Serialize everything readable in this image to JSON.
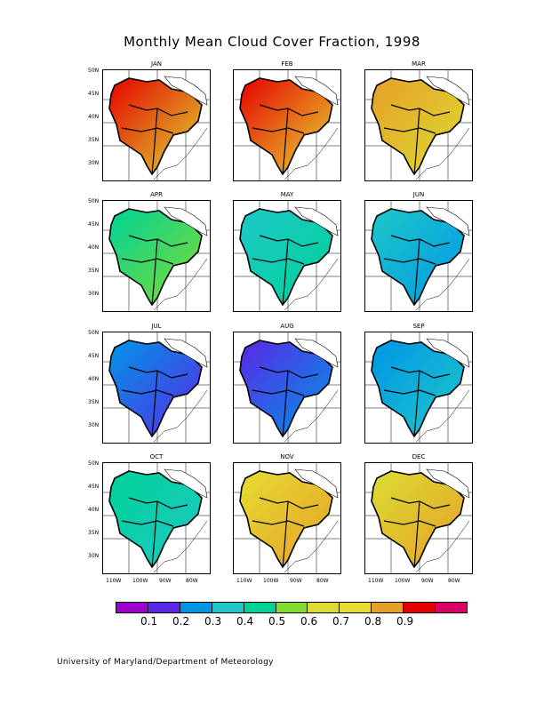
{
  "title": "Monthly Mean Cloud Cover Fraction, 1998",
  "months": [
    "JAN",
    "FEB",
    "MAR",
    "APR",
    "MAY",
    "JUN",
    "JUL",
    "AUG",
    "SEP",
    "OCT",
    "NOV",
    "DEC"
  ],
  "lat_labels": [
    "50N",
    "45N",
    "40N",
    "35N",
    "30N"
  ],
  "lon_labels": [
    "110W",
    "100W",
    "90W",
    "80W"
  ],
  "colorbar": {
    "colors": [
      "#9b00cc",
      "#5a28e6",
      "#0096e6",
      "#1ec8c8",
      "#00d296",
      "#82dc32",
      "#dcdc32",
      "#e6dc32",
      "#e6a028",
      "#e60000",
      "#dc0064"
    ],
    "tick_labels": [
      "0.1",
      "0.2",
      "0.3",
      "0.4",
      "0.5",
      "0.6",
      "0.7",
      "0.8",
      "0.9"
    ]
  },
  "footer": "University of Maryland/Department of Meteorology"
}
